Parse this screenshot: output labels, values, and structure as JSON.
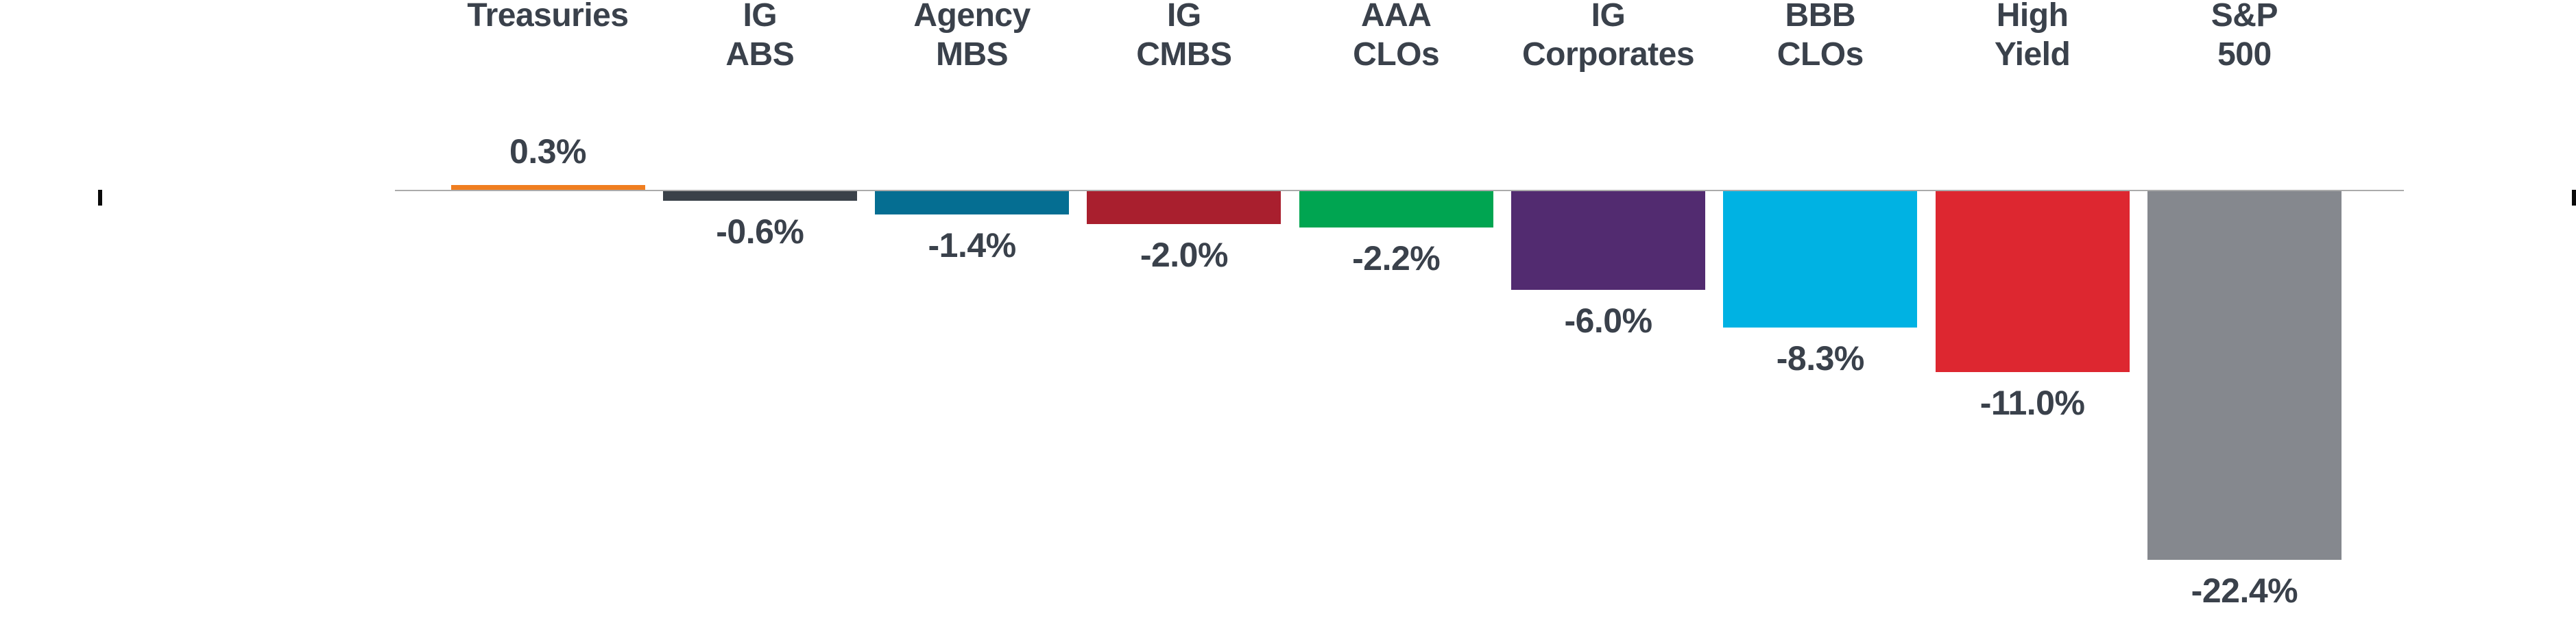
{
  "chart_data": {
    "type": "bar",
    "title": "",
    "xlabel": "",
    "ylabel": "",
    "ylim": [
      -24,
      2
    ],
    "grid": false,
    "legend": "none",
    "baseline_value": 0,
    "categories": [
      "Treasuries",
      "IG\nABS",
      "Agency\nMBS",
      "IG\nCMBS",
      "AAA\nCLOs",
      "IG\nCorporates",
      "BBB\nCLOs",
      "High\nYield",
      "S&P\n500"
    ],
    "values": [
      0.3,
      -0.6,
      -1.4,
      -2.0,
      -2.2,
      -6.0,
      -8.3,
      -11.0,
      -22.4
    ],
    "value_labels": [
      "0.3%",
      "-0.6%",
      "-1.4%",
      "-2.0%",
      "-2.2%",
      "-6.0%",
      "-8.3%",
      "-11.0%",
      "-22.4%"
    ],
    "bar_colors": [
      "#F07E20",
      "#3A4149",
      "#056E92",
      "#A91F2E",
      "#00A551",
      "#522B70",
      "#00B2E3",
      "#DD2730",
      "#85888E"
    ],
    "label_color": "#3A414B",
    "baseline_color": "#ABABAB"
  },
  "decorations": {
    "left_edge_mark": "black-crop-mark",
    "right_edge_mark": "black-crop-mark"
  }
}
